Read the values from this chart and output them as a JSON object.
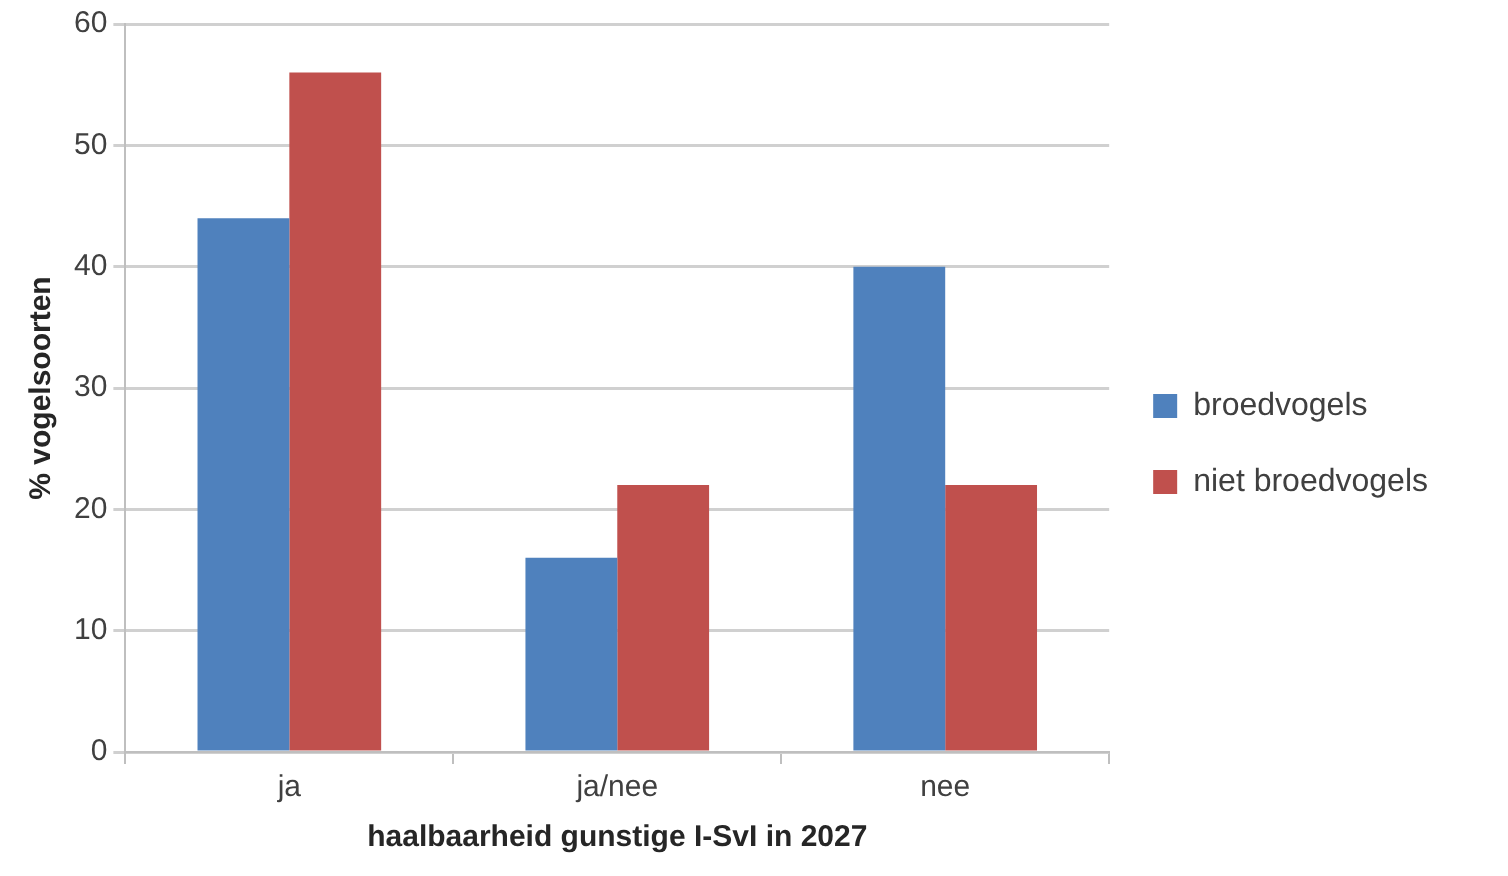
{
  "chart_data": {
    "type": "bar",
    "xlabel": "haalbaarheid gunstige I-SvI in 2027",
    "ylabel": "% vogelsoorten",
    "categories": [
      "ja",
      "ja/nee",
      "nee"
    ],
    "series": [
      {
        "name": "broedvogels",
        "color": "#4f81bd",
        "values": [
          44,
          16,
          40
        ]
      },
      {
        "name": "niet broedvogels",
        "color": "#c0504d",
        "values": [
          56,
          22,
          22
        ]
      }
    ],
    "ylim": [
      0,
      60
    ],
    "yticks": [
      0,
      10,
      20,
      30,
      40,
      50,
      60
    ],
    "grid": "y",
    "legend": "right"
  }
}
